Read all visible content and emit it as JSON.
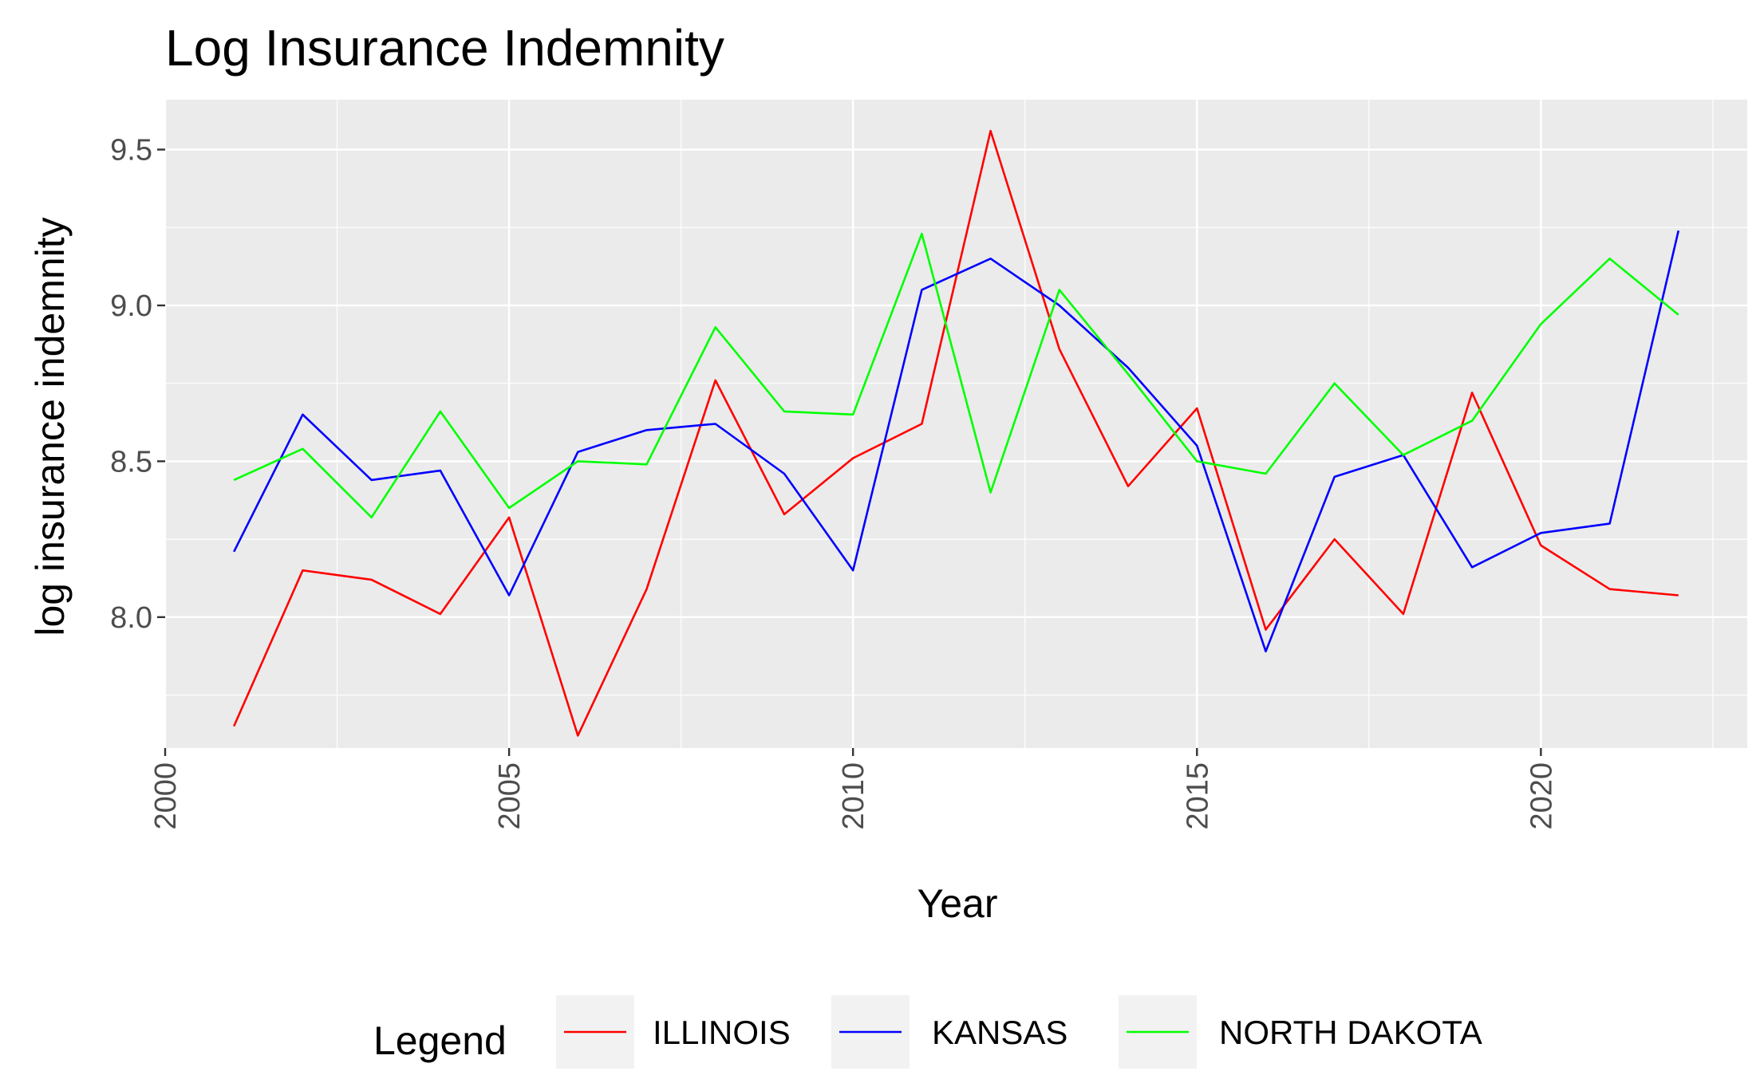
{
  "chart_data": {
    "type": "line",
    "title": "Log Insurance Indemnity",
    "xlabel": "Year",
    "ylabel": "log insurance indemnity",
    "xlim": [
      2000,
      2023
    ],
    "ylim": [
      7.58,
      9.66
    ],
    "x_ticks": [
      2000,
      2005,
      2010,
      2015,
      2020
    ],
    "y_ticks": [
      8.0,
      8.5,
      9.0,
      9.5
    ],
    "x_tick_labels": [
      "2000",
      "2005",
      "2010",
      "2015",
      "2020"
    ],
    "y_tick_labels": [
      "8.0",
      "8.5",
      "9.0",
      "9.5"
    ],
    "grid": true,
    "legend_position": "bottom",
    "legend_title": "Legend",
    "x": [
      2001,
      2002,
      2003,
      2004,
      2005,
      2006,
      2007,
      2008,
      2009,
      2010,
      2011,
      2012,
      2013,
      2014,
      2015,
      2016,
      2017,
      2018,
      2019,
      2020,
      2021,
      2022
    ],
    "series": [
      {
        "name": "ILLINOIS",
        "color": "#ff0000",
        "values": [
          7.65,
          8.15,
          8.12,
          8.01,
          8.32,
          7.62,
          8.09,
          8.76,
          8.33,
          8.51,
          8.62,
          9.56,
          8.86,
          8.42,
          8.67,
          7.96,
          8.25,
          8.01,
          8.72,
          8.23,
          8.09,
          8.07
        ]
      },
      {
        "name": "KANSAS",
        "color": "#0000ff",
        "values": [
          8.21,
          8.65,
          8.44,
          8.47,
          8.07,
          8.53,
          8.6,
          8.62,
          8.46,
          8.15,
          9.05,
          9.15,
          9.0,
          8.8,
          8.55,
          7.89,
          8.45,
          8.52,
          8.16,
          8.27,
          8.3,
          9.24
        ]
      },
      {
        "name": "NORTH DAKOTA",
        "color": "#00ff00",
        "values": [
          8.44,
          8.54,
          8.32,
          8.66,
          8.35,
          8.5,
          8.49,
          8.93,
          8.66,
          8.65,
          9.23,
          8.4,
          9.05,
          8.78,
          8.5,
          8.46,
          8.75,
          8.52,
          8.63,
          8.94,
          9.15,
          8.97
        ]
      }
    ]
  }
}
